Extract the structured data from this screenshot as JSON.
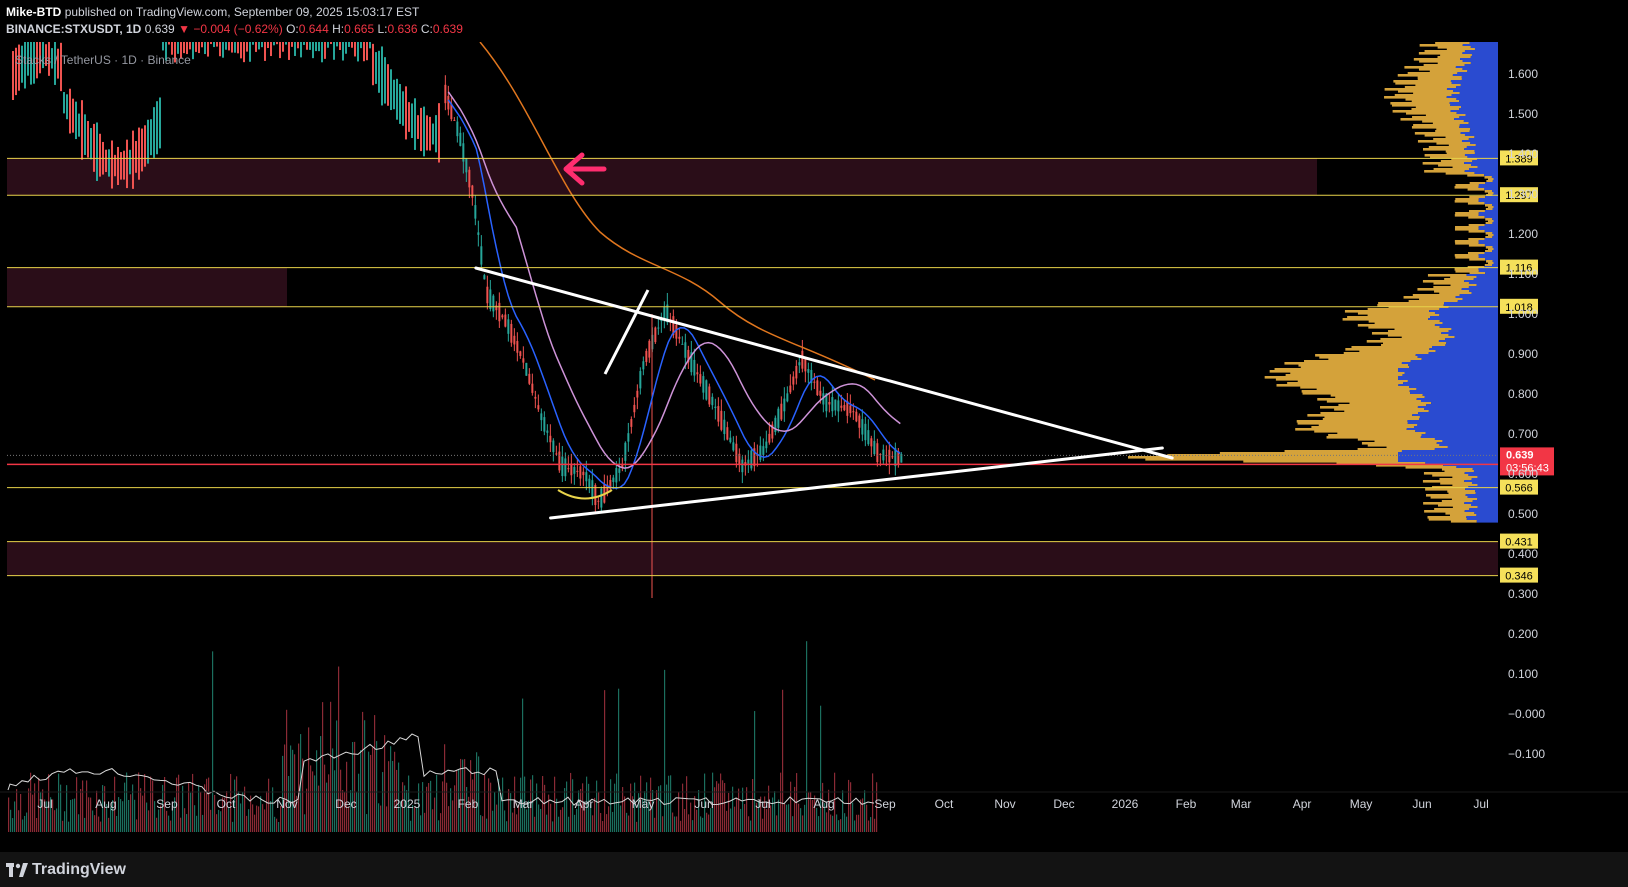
{
  "header": {
    "author": "Mike-BTD",
    "published": "published on TradingView.com, September 09, 2025 15:03:17 EST",
    "symbol": "BINANCE:STXUSDT, 1D",
    "price": "0.639",
    "change": "−0.004 (−0.62%)",
    "o_label": "O:",
    "o_val": "0.644",
    "h_label": "H:",
    "h_val": "0.665",
    "l_label": "L:",
    "l_val": "0.636",
    "c_label": "C:",
    "c_val": "0.639"
  },
  "chart_title": "Stacks / TetherUS · 1D · Binance",
  "footer": {
    "logo": "TradingView"
  },
  "chart_data": {
    "type": "line",
    "x_ticks": [
      "Jul",
      "Aug",
      "Sep",
      "Oct",
      "Nov",
      "Dec",
      "2025",
      "Feb",
      "Mar",
      "Apr",
      "May",
      "Jun",
      "Jul",
      "Aug",
      "Sep",
      "Oct",
      "Nov",
      "Dec",
      "2026",
      "Feb",
      "Mar",
      "Apr",
      "May",
      "Jun",
      "Jul"
    ],
    "y_ticks": [
      "1.600",
      "1.500",
      "1.400",
      "1.300",
      "1.200",
      "1.100",
      "1.000",
      "0.900",
      "0.800",
      "0.700",
      "0.600",
      "0.500",
      "0.400",
      "0.300",
      "0.200",
      "0.100",
      "−0.000",
      "−0.100"
    ],
    "ylim": [
      -0.15,
      1.68
    ],
    "levels": [
      {
        "value": 1.389,
        "label": "1.389"
      },
      {
        "value": 1.297,
        "label": "1.297"
      },
      {
        "value": 1.116,
        "label": "1.116"
      },
      {
        "value": 1.018,
        "label": "1.018"
      },
      {
        "value": 0.566,
        "label": "0.566"
      },
      {
        "value": 0.431,
        "label": "0.431"
      },
      {
        "value": 0.346,
        "label": "0.346"
      }
    ],
    "current_price": {
      "value": 0.639,
      "label": "0.639",
      "countdown": "03:56:43"
    },
    "price_path": [
      {
        "x": "2025-01-20",
        "y": 1.55
      },
      {
        "x": "2025-01-27",
        "y": 1.45
      },
      {
        "x": "2025-02-03",
        "y": 1.3
      },
      {
        "x": "2025-02-10",
        "y": 1.05
      },
      {
        "x": "2025-02-20",
        "y": 0.98
      },
      {
        "x": "2025-03-01",
        "y": 0.88
      },
      {
        "x": "2025-03-10",
        "y": 0.74
      },
      {
        "x": "2025-03-20",
        "y": 0.62
      },
      {
        "x": "2025-04-01",
        "y": 0.6
      },
      {
        "x": "2025-04-08",
        "y": 0.53
      },
      {
        "x": "2025-04-20",
        "y": 0.62
      },
      {
        "x": "2025-05-01",
        "y": 0.88
      },
      {
        "x": "2025-05-12",
        "y": 1.01
      },
      {
        "x": "2025-05-25",
        "y": 0.88
      },
      {
        "x": "2025-06-05",
        "y": 0.78
      },
      {
        "x": "2025-06-20",
        "y": 0.62
      },
      {
        "x": "2025-07-01",
        "y": 0.66
      },
      {
        "x": "2025-07-12",
        "y": 0.78
      },
      {
        "x": "2025-07-20",
        "y": 0.89
      },
      {
        "x": "2025-08-01",
        "y": 0.78
      },
      {
        "x": "2025-08-15",
        "y": 0.76
      },
      {
        "x": "2025-08-28",
        "y": 0.65
      },
      {
        "x": "2025-09-09",
        "y": 0.639
      }
    ],
    "trendlines": [
      {
        "from": {
          "x": "2025-02-05",
          "y": 1.115
        },
        "to": {
          "x": "2026-01-25",
          "y": 0.64
        }
      },
      {
        "from": {
          "x": "2025-03-15",
          "y": 0.49
        },
        "to": {
          "x": "2026-01-20",
          "y": 0.665
        }
      }
    ],
    "colors": {
      "resistance_zone": "#2a0d18",
      "level_line": "#e8d34a",
      "price_line": "#f23645",
      "trendline": "#ffffff",
      "volume_profile_up": "#d4a23a",
      "volume_profile_down": "#2a4bd0",
      "ma_blue": "#2962ff",
      "ma_purple": "#ce93d8",
      "ma_orange": "#e0761e",
      "arrow": "#ff2d6f"
    }
  }
}
